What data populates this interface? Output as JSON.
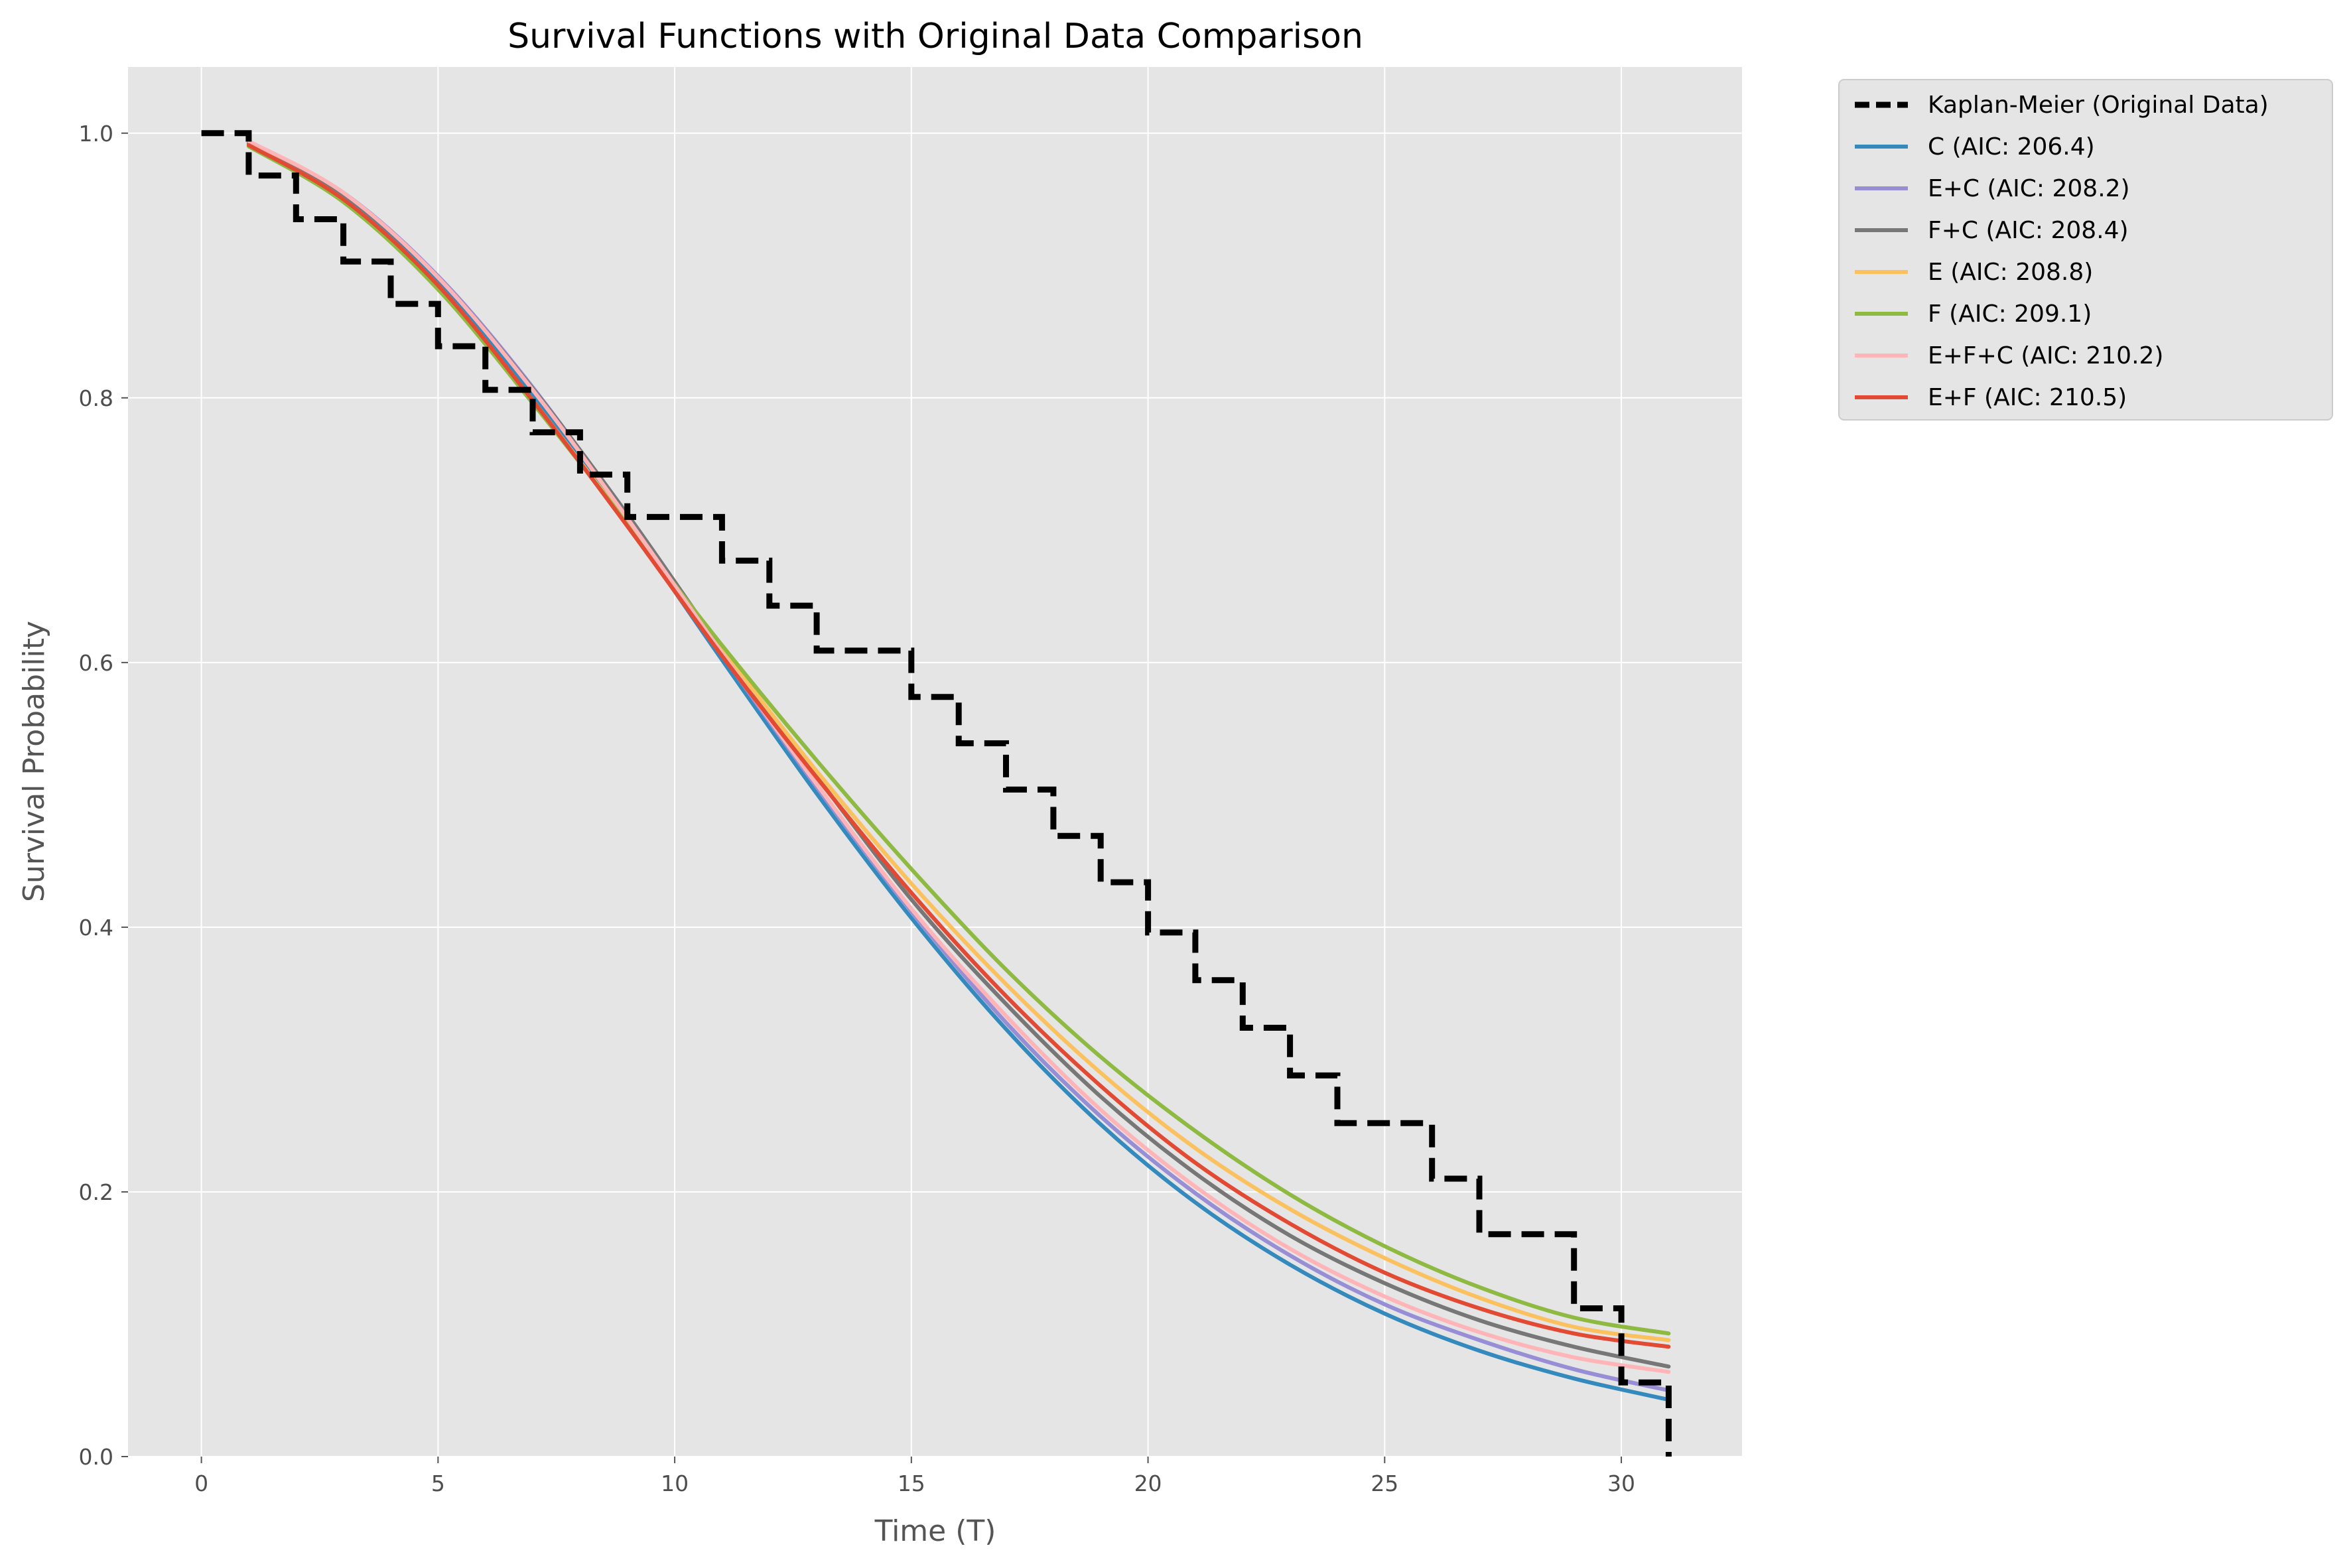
{
  "chart_data": {
    "type": "line",
    "title": "Survival Functions with Original Data Comparison",
    "xlabel": "Time (T)",
    "ylabel": "Survival Probability",
    "xlim": [
      -1.55,
      32.55
    ],
    "ylim": [
      0.0,
      1.05
    ],
    "xticks": [
      0,
      5,
      10,
      15,
      20,
      25,
      30
    ],
    "xtick_labels": [
      "0",
      "5",
      "10",
      "15",
      "20",
      "25",
      "30"
    ],
    "yticks": [
      0.0,
      0.2,
      0.4,
      0.6,
      0.8,
      1.0
    ],
    "ytick_labels": [
      "0.0",
      "0.2",
      "0.4",
      "0.6",
      "0.8",
      "1.0"
    ],
    "grid": true,
    "legend_position": "outside-upper-right",
    "kaplan_meier": {
      "name": "Kaplan-Meier (Original Data)",
      "color": "#000000",
      "style": "dashed",
      "t": [
        0,
        1,
        2,
        3,
        4,
        5,
        6,
        7,
        8,
        9,
        11,
        12,
        13,
        15,
        16,
        17,
        18,
        19,
        20,
        21,
        22,
        23,
        24,
        26,
        27,
        29,
        30,
        31
      ],
      "s": [
        1.0,
        0.968,
        0.935,
        0.903,
        0.871,
        0.839,
        0.806,
        0.774,
        0.742,
        0.71,
        0.677,
        0.643,
        0.609,
        0.574,
        0.539,
        0.504,
        0.469,
        0.434,
        0.396,
        0.36,
        0.324,
        0.288,
        0.252,
        0.21,
        0.168,
        0.112,
        0.056,
        0.0
      ]
    },
    "x": [
      1,
      3,
      5,
      7,
      9,
      11,
      13,
      15,
      17,
      19,
      21,
      23,
      25,
      27,
      29,
      31
    ],
    "series": [
      {
        "name": "C (AIC: 206.4)",
        "color": "#348abd",
        "values": [
          0.992,
          0.952,
          0.888,
          0.802,
          0.705,
          0.602,
          0.501,
          0.407,
          0.323,
          0.251,
          0.192,
          0.145,
          0.108,
          0.08,
          0.059,
          0.043
        ]
      },
      {
        "name": "E+C (AIC: 208.2)",
        "color": "#988ed5",
        "values": [
          0.993,
          0.955,
          0.892,
          0.808,
          0.71,
          0.606,
          0.506,
          0.412,
          0.328,
          0.257,
          0.199,
          0.152,
          0.115,
          0.088,
          0.066,
          0.05
        ]
      },
      {
        "name": "F+C (AIC: 208.4)",
        "color": "#777777",
        "values": [
          0.993,
          0.954,
          0.891,
          0.807,
          0.712,
          0.61,
          0.514,
          0.421,
          0.342,
          0.272,
          0.214,
          0.167,
          0.131,
          0.103,
          0.083,
          0.068
        ]
      },
      {
        "name": "E (AIC: 208.8)",
        "color": "#fbc15e",
        "values": [
          0.991,
          0.95,
          0.885,
          0.798,
          0.705,
          0.61,
          0.518,
          0.433,
          0.357,
          0.29,
          0.233,
          0.187,
          0.15,
          0.12,
          0.098,
          0.088
        ]
      },
      {
        "name": "F (AIC: 209.1)",
        "color": "#8eba42",
        "values": [
          0.99,
          0.948,
          0.882,
          0.796,
          0.705,
          0.613,
          0.526,
          0.444,
          0.368,
          0.302,
          0.246,
          0.198,
          0.159,
          0.128,
          0.105,
          0.093
        ]
      },
      {
        "name": "E+F+C (AIC: 210.2)",
        "color": "#ffb5b8",
        "values": [
          0.994,
          0.955,
          0.891,
          0.806,
          0.709,
          0.607,
          0.508,
          0.414,
          0.333,
          0.262,
          0.204,
          0.157,
          0.121,
          0.094,
          0.075,
          0.064
        ]
      },
      {
        "name": "E+F (AIC: 210.5)",
        "color": "#e24a33",
        "values": [
          0.991,
          0.95,
          0.885,
          0.798,
          0.703,
          0.605,
          0.513,
          0.426,
          0.348,
          0.28,
          0.222,
          0.176,
          0.139,
          0.112,
          0.093,
          0.083
        ]
      }
    ]
  }
}
